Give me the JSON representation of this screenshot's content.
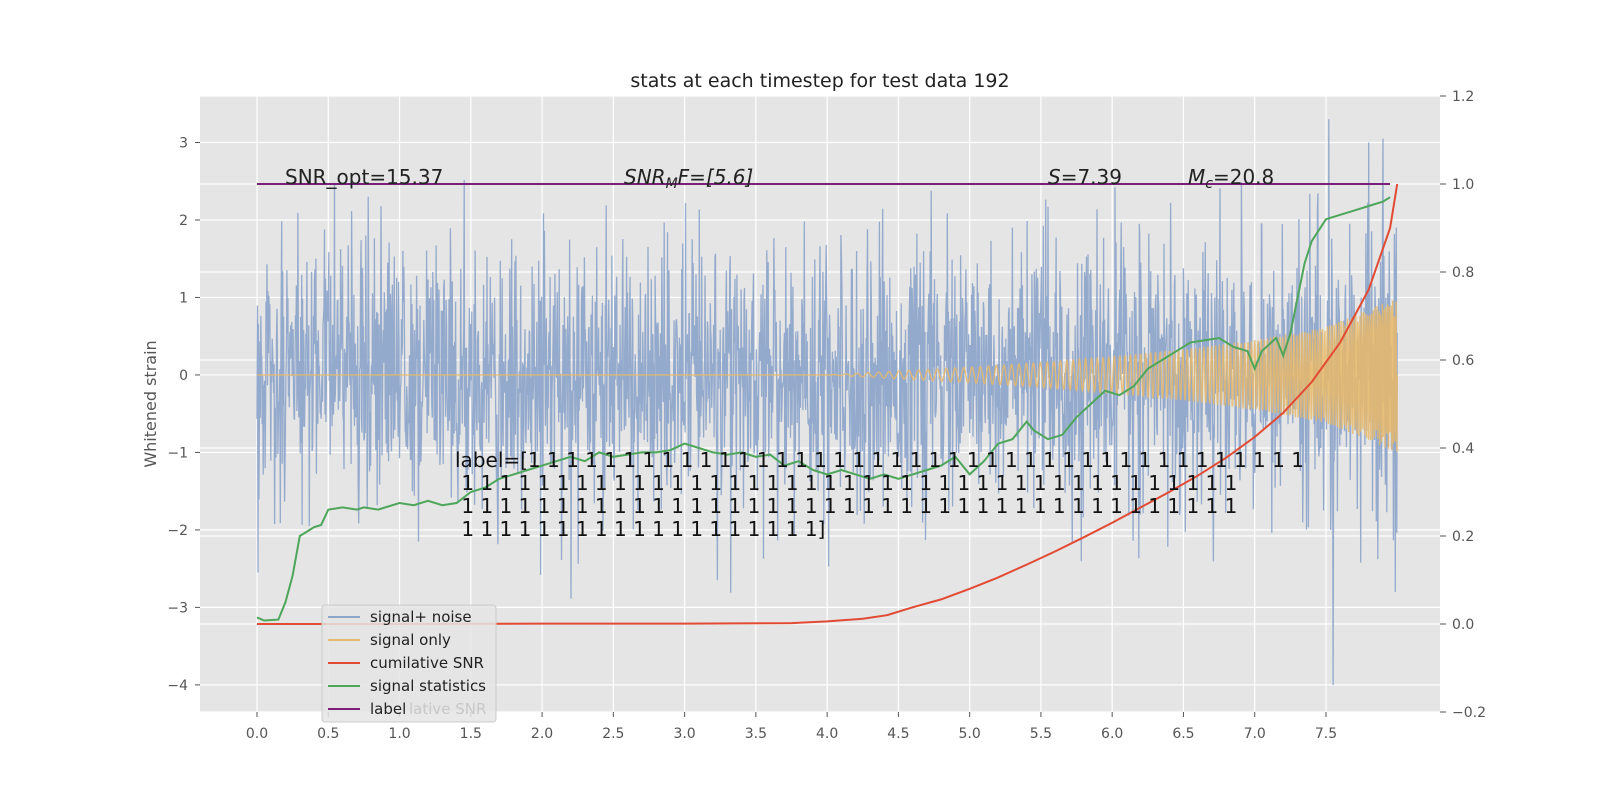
{
  "chart_data": {
    "type": "line",
    "title": "stats at each timestep for test data 192",
    "ylabel": "Whitened strain",
    "xlim": [
      -0.4,
      8.3
    ],
    "ylim": [
      -4.35,
      3.6
    ],
    "y2lim": [
      -0.2,
      1.2
    ],
    "xticks": [
      0.0,
      0.5,
      1.0,
      1.5,
      2.0,
      2.5,
      3.0,
      3.5,
      4.0,
      4.5,
      5.0,
      5.5,
      6.0,
      6.5,
      7.0,
      7.5
    ],
    "yticks": [
      3,
      2,
      1,
      0,
      -1,
      -2,
      -3,
      -4
    ],
    "y2ticks": [
      1.2,
      1.0,
      0.8,
      0.6,
      0.4,
      0.2,
      0.0,
      -0.2
    ],
    "grid": true,
    "legend_position": "lower-left",
    "annotations": {
      "snr_opt": "SNR_opt=15.37",
      "snr_mf_main": "SNR",
      "snr_mf_sub": "M",
      "snr_mf_rest": "F=[5.6]",
      "s_main": "S",
      "s_rest": "=7.39",
      "mc_main": "M",
      "mc_sub": "c",
      "mc_rest": "=20.8",
      "label_lines": [
        "label=[1 1 1 1 1 1 1 1 1 1 1 1 1 1 1 1 1 1 1 1 1 1 1 1 1 1 1 1 1 1 1 1 1 1 1 1 1 1 1 1 1",
        " 1 1 1 1 1 1 1 1 1 1 1 1 1 1 1 1 1 1 1 1 1 1 1 1 1 1 1 1 1 1 1 1 1 1 1 1 1 1 1 1 1",
        " 1 1 1 1 1 1 1 1 1 1 1 1 1 1 1 1 1 1 1 1 1 1 1 1 1 1 1 1 1 1 1 1 1 1 1 1 1 1 1 1 1",
        " 1 1 1 1 1 1 1 1 1 1 1 1 1 1 1 1 1 1 1]"
      ],
      "legend_ghost": "lative SNR"
    },
    "series": [
      {
        "name": "signal+ noise",
        "axis": "left",
        "color": "#8fa6cb",
        "x_range": [
          0.0,
          8.0
        ],
        "noise_std": 1.0,
        "extremes": {
          "max": 3.3,
          "min": -4.0
        }
      },
      {
        "name": "signal only",
        "axis": "left",
        "color": "#e8b968",
        "x": [
          0.0,
          4.0,
          4.5,
          5.0,
          5.5,
          6.0,
          6.5,
          7.0,
          7.5,
          8.0
        ],
        "amplitude": [
          0.0,
          0.0,
          0.05,
          0.1,
          0.16,
          0.24,
          0.33,
          0.45,
          0.62,
          1.0
        ],
        "period_start": 0.22,
        "period_end": 0.05
      },
      {
        "name": "cumilative SNR",
        "axis": "right",
        "color": "#e24a33",
        "x": [
          0.0,
          1.0,
          2.0,
          3.0,
          3.75,
          4.0,
          4.25,
          4.42,
          4.6,
          4.8,
          5.0,
          5.2,
          5.4,
          5.6,
          5.8,
          6.0,
          6.2,
          6.4,
          6.6,
          6.8,
          7.0,
          7.2,
          7.4,
          7.6,
          7.8,
          7.95,
          8.0
        ],
        "values": [
          0.0,
          0.0,
          0.001,
          0.001,
          0.002,
          0.006,
          0.012,
          0.02,
          0.038,
          0.056,
          0.08,
          0.106,
          0.135,
          0.165,
          0.197,
          0.23,
          0.265,
          0.3,
          0.337,
          0.378,
          0.425,
          0.48,
          0.55,
          0.64,
          0.76,
          0.9,
          1.0
        ]
      },
      {
        "name": "signal statistics",
        "axis": "right",
        "color": "#348abd",
        "draw_color": "#4da65a",
        "x": [
          0.0,
          0.05,
          0.15,
          0.2,
          0.25,
          0.3,
          0.35,
          0.4,
          0.45,
          0.5,
          0.6,
          0.7,
          0.75,
          0.85,
          1.0,
          1.1,
          1.2,
          1.3,
          1.4,
          1.5,
          1.6,
          1.7,
          1.8,
          1.9,
          2.0,
          2.1,
          2.2,
          2.3,
          2.4,
          2.5,
          2.6,
          2.7,
          2.8,
          2.9,
          3.0,
          3.1,
          3.2,
          3.3,
          3.4,
          3.5,
          3.6,
          3.7,
          3.8,
          3.9,
          4.0,
          4.1,
          4.2,
          4.3,
          4.4,
          4.5,
          4.6,
          4.7,
          4.8,
          4.9,
          5.0,
          5.1,
          5.2,
          5.3,
          5.4,
          5.45,
          5.55,
          5.65,
          5.75,
          5.85,
          5.95,
          6.05,
          6.15,
          6.25,
          6.35,
          6.45,
          6.55,
          6.65,
          6.75,
          6.85,
          6.95,
          7.0,
          7.05,
          7.15,
          7.2,
          7.25,
          7.35,
          7.4,
          7.5,
          7.6,
          7.7,
          7.8,
          7.9,
          7.95
        ],
        "values": [
          0.015,
          0.008,
          0.01,
          0.05,
          0.11,
          0.2,
          0.21,
          0.22,
          0.225,
          0.26,
          0.265,
          0.26,
          0.265,
          0.26,
          0.275,
          0.27,
          0.28,
          0.27,
          0.275,
          0.3,
          0.31,
          0.33,
          0.34,
          0.35,
          0.36,
          0.37,
          0.38,
          0.37,
          0.39,
          0.38,
          0.385,
          0.39,
          0.39,
          0.395,
          0.41,
          0.4,
          0.39,
          0.385,
          0.39,
          0.38,
          0.385,
          0.36,
          0.37,
          0.35,
          0.34,
          0.35,
          0.34,
          0.33,
          0.34,
          0.33,
          0.34,
          0.35,
          0.36,
          0.38,
          0.34,
          0.37,
          0.41,
          0.42,
          0.46,
          0.44,
          0.42,
          0.43,
          0.47,
          0.5,
          0.53,
          0.52,
          0.54,
          0.58,
          0.6,
          0.62,
          0.64,
          0.645,
          0.65,
          0.63,
          0.62,
          0.58,
          0.62,
          0.65,
          0.61,
          0.66,
          0.82,
          0.87,
          0.92,
          0.93,
          0.94,
          0.95,
          0.96,
          0.97
        ]
      },
      {
        "name": "label",
        "axis": "right",
        "color": "#7a1f7a",
        "x": [
          0.0,
          7.95
        ],
        "values": [
          1.0,
          1.0
        ]
      }
    ]
  }
}
